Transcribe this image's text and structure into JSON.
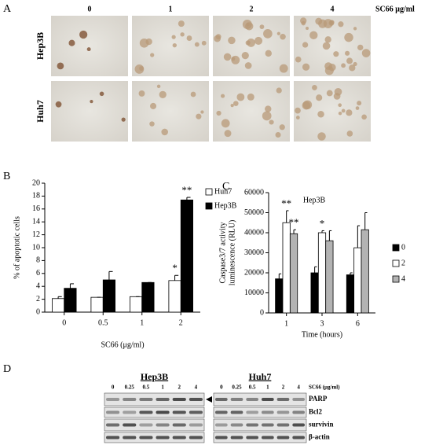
{
  "panels": {
    "a": {
      "letter": "A",
      "columns": [
        "0",
        "1",
        "2",
        "4"
      ],
      "unit": "SC66 μg/ml",
      "rows": [
        "Hep3B",
        "Huh7"
      ]
    },
    "d": {
      "letter": "D",
      "groups": [
        "Hep3B",
        "Huh7"
      ],
      "lanes": [
        "0",
        "0.25",
        "0.5",
        "1",
        "2",
        "4"
      ],
      "unit": "SC66 (μg/ml)",
      "proteins": [
        "PARP",
        "Bcl2",
        "survivin",
        "β-actin"
      ]
    }
  },
  "chart_data": [
    {
      "type": "bar",
      "letter": "B",
      "xlabel": "SC66 (μg/ml)",
      "ylabel": [
        "% of apoptotic cells"
      ],
      "categories": [
        "0",
        "0.5",
        "1",
        "2"
      ],
      "series": [
        {
          "name": "Huh7",
          "color": "#ffffff",
          "values": [
            2.1,
            2.3,
            2.4,
            4.9
          ],
          "errors": [
            0.3,
            0,
            0,
            0.8
          ],
          "significance": [
            null,
            null,
            null,
            "*"
          ]
        },
        {
          "name": "Hep3B",
          "color": "#000000",
          "values": [
            3.7,
            5.0,
            4.6,
            17.4
          ],
          "errors": [
            0.7,
            1.3,
            0,
            0.4
          ],
          "significance": [
            null,
            null,
            null,
            "**"
          ]
        }
      ],
      "ylim": [
        0,
        20
      ],
      "yticks": [
        0,
        2,
        4,
        6,
        8,
        10,
        12,
        14,
        16,
        18,
        20
      ],
      "legend": "upper right"
    },
    {
      "type": "bar",
      "letter": "C",
      "title": "Hep3B",
      "xlabel": "Time (hours)",
      "ylabel": [
        "Caspase3/7 activity",
        "luminescence (RLU)"
      ],
      "categories": [
        "1",
        "3",
        "6"
      ],
      "series": [
        {
          "name": "0",
          "color": "#000000",
          "values": [
            17000,
            20000,
            19000
          ],
          "errors": [
            2500,
            3000,
            1000
          ],
          "significance": [
            null,
            null,
            null
          ]
        },
        {
          "name": "2",
          "color": "#ffffff",
          "values": [
            45000,
            40000,
            32500
          ],
          "errors": [
            6000,
            1000,
            11000
          ],
          "significance": [
            "**",
            "*",
            null
          ]
        },
        {
          "name": "4",
          "color": "#b3b3b3",
          "values": [
            39500,
            36000,
            41500
          ],
          "errors": [
            2000,
            5000,
            8500
          ],
          "significance": [
            "**",
            null,
            null
          ]
        }
      ],
      "ylim": [
        0,
        60000
      ],
      "yticks": [
        0,
        10000,
        20000,
        30000,
        40000,
        50000,
        60000
      ],
      "legend": "right"
    }
  ]
}
